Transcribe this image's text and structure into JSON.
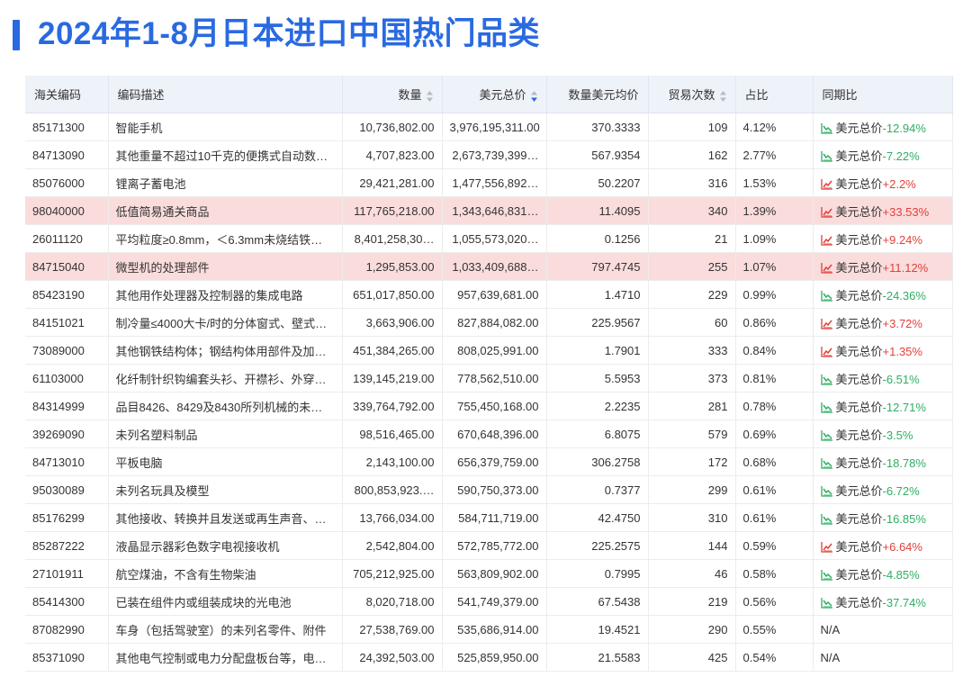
{
  "title": "2024年1-8月日本进口中国热门品类",
  "table": {
    "columns": [
      {
        "label": "海关编码"
      },
      {
        "label": "编码描述"
      },
      {
        "label": "数量",
        "sortable": true
      },
      {
        "label": "美元总价",
        "sortable": true,
        "sort": "desc"
      },
      {
        "label": "数量美元均价"
      },
      {
        "label": "贸易次数",
        "sortable": true
      },
      {
        "label": "占比"
      },
      {
        "label": "同期比"
      }
    ],
    "rows": [
      {
        "cells": [
          "85171300",
          "智能手机",
          "10,736,802.00",
          "3,976,195,311.00",
          "370.3333",
          "109",
          "4.12%",
          {
            "label": "美元总价",
            "change": "-12.94%"
          }
        ]
      },
      {
        "cells": [
          "84713090",
          "其他重量不超过10千克的便携式自动数…",
          "4,707,823.00",
          "2,673,739,399…",
          "567.9354",
          "162",
          "2.77%",
          {
            "label": "美元总价",
            "change": "-7.22%"
          }
        ]
      },
      {
        "cells": [
          "85076000",
          "锂离子蓄电池",
          "29,421,281.00",
          "1,477,556,892…",
          "50.2207",
          "316",
          "1.53%",
          {
            "label": "美元总价",
            "change": "+2.2%"
          }
        ]
      },
      {
        "cells": [
          "98040000",
          "低值简易通关商品",
          "117,765,218.00",
          "1,343,646,831…",
          "11.4095",
          "340",
          "1.39%",
          {
            "label": "美元总价",
            "change": "+33.53%"
          }
        ],
        "highlight": true
      },
      {
        "cells": [
          "26011120",
          "平均粒度≥0.8mm，＜6.3mm未烧结铁…",
          "8,401,258,30…",
          "1,055,573,020…",
          "0.1256",
          "21",
          "1.09%",
          {
            "label": "美元总价",
            "change": "+9.24%"
          }
        ]
      },
      {
        "cells": [
          "84715040",
          "微型机的处理部件",
          "1,295,853.00",
          "1,033,409,688…",
          "797.4745",
          "255",
          "1.07%",
          {
            "label": "美元总价",
            "change": "+11.12%"
          }
        ],
        "highlight": true
      },
      {
        "cells": [
          "85423190",
          "其他用作处理器及控制器的集成电路",
          "651,017,850.00",
          "957,639,681.00",
          "1.4710",
          "229",
          "0.99%",
          {
            "label": "美元总价",
            "change": "-24.36%"
          }
        ]
      },
      {
        "cells": [
          "84151021",
          "制冷量≤4000大卡/时的分体窗式、壁式…",
          "3,663,906.00",
          "827,884,082.00",
          "225.9567",
          "60",
          "0.86%",
          {
            "label": "美元总价",
            "change": "+3.72%"
          }
        ]
      },
      {
        "cells": [
          "73089000",
          "其他钢铁结构体；钢结构体用部件及加…",
          "451,384,265.00",
          "808,025,991.00",
          "1.7901",
          "333",
          "0.84%",
          {
            "label": "美元总价",
            "change": "+1.35%"
          }
        ]
      },
      {
        "cells": [
          "61103000",
          "化纤制针织钩编套头衫、开襟衫、外穿…",
          "139,145,219.00",
          "778,562,510.00",
          "5.5953",
          "373",
          "0.81%",
          {
            "label": "美元总价",
            "change": "-6.51%"
          }
        ]
      },
      {
        "cells": [
          "84314999",
          "品目8426、8429及8430所列机械的未…",
          "339,764,792.00",
          "755,450,168.00",
          "2.2235",
          "281",
          "0.78%",
          {
            "label": "美元总价",
            "change": "-12.71%"
          }
        ]
      },
      {
        "cells": [
          "39269090",
          "未列名塑料制品",
          "98,516,465.00",
          "670,648,396.00",
          "6.8075",
          "579",
          "0.69%",
          {
            "label": "美元总价",
            "change": "-3.5%"
          }
        ]
      },
      {
        "cells": [
          "84713010",
          "平板电脑",
          "2,143,100.00",
          "656,379,759.00",
          "306.2758",
          "172",
          "0.68%",
          {
            "label": "美元总价",
            "change": "-18.78%"
          }
        ]
      },
      {
        "cells": [
          "95030089",
          "未列名玩具及模型",
          "800,853,923.…",
          "590,750,373.00",
          "0.7377",
          "299",
          "0.61%",
          {
            "label": "美元总价",
            "change": "-6.72%"
          }
        ]
      },
      {
        "cells": [
          "85176299",
          "其他接收、转换并且发送或再生声音、…",
          "13,766,034.00",
          "584,711,719.00",
          "42.4750",
          "310",
          "0.61%",
          {
            "label": "美元总价",
            "change": "-16.85%"
          }
        ]
      },
      {
        "cells": [
          "85287222",
          "液晶显示器彩色数字电视接收机",
          "2,542,804.00",
          "572,785,772.00",
          "225.2575",
          "144",
          "0.59%",
          {
            "label": "美元总价",
            "change": "+6.64%"
          }
        ]
      },
      {
        "cells": [
          "27101911",
          "航空煤油，不含有生物柴油",
          "705,212,925.00",
          "563,809,902.00",
          "0.7995",
          "46",
          "0.58%",
          {
            "label": "美元总价",
            "change": "-4.85%"
          }
        ]
      },
      {
        "cells": [
          "85414300",
          "已装在组件内或组装成块的光电池",
          "8,020,718.00",
          "541,749,379.00",
          "67.5438",
          "219",
          "0.56%",
          {
            "label": "美元总价",
            "change": "-37.74%"
          }
        ]
      },
      {
        "cells": [
          "87082990",
          "车身（包括驾驶室）的未列名零件、附件",
          "27,538,769.00",
          "535,686,914.00",
          "19.4521",
          "290",
          "0.55%",
          "N/A"
        ]
      },
      {
        "cells": [
          "85371090",
          "其他电气控制或电力分配盘板台等，电…",
          "24,392,503.00",
          "525,859,950.00",
          "21.5583",
          "425",
          "0.54%",
          "N/A"
        ]
      }
    ]
  }
}
